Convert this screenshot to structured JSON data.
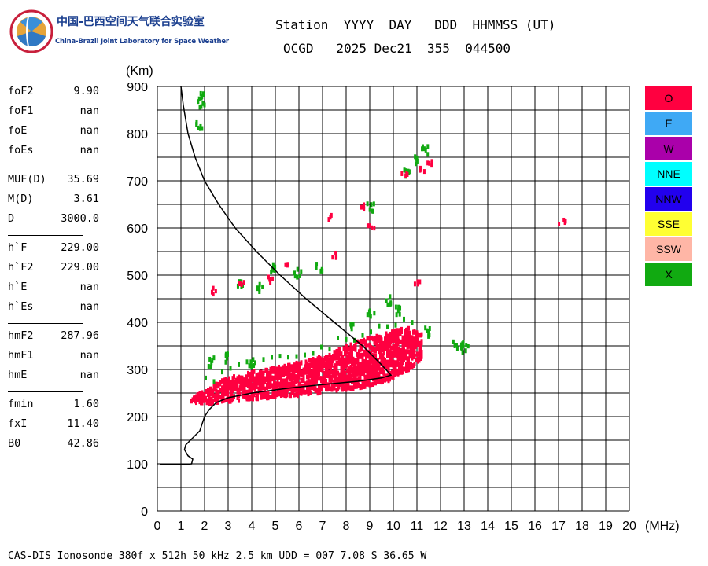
{
  "logo": {
    "title_cn": "中国-巴西空间天气联合实验室",
    "title_en": "China-Brazil Joint Laboratory for Space Weather"
  },
  "header": {
    "line1": "Station  YYYY  DAY   DDD  HHMMSS (UT)",
    "line2": "OCGD   2025 Dec21  355  044500"
  },
  "parameters": [
    {
      "name": "foF2",
      "value": "9.90"
    },
    {
      "name": "foF1",
      "value": "nan"
    },
    {
      "name": "foE",
      "value": "nan"
    },
    {
      "name": "foEs",
      "value": "nan"
    },
    {
      "sep": true
    },
    {
      "name": "MUF(D)",
      "value": "35.69"
    },
    {
      "name": "M(D)",
      "value": "3.61"
    },
    {
      "name": "D",
      "value": "3000.0"
    },
    {
      "sep": true
    },
    {
      "name": "h`F",
      "value": "229.00"
    },
    {
      "name": "h`F2",
      "value": "229.00"
    },
    {
      "name": "h`E",
      "value": "nan"
    },
    {
      "name": "h`Es",
      "value": "nan"
    },
    {
      "sep": true
    },
    {
      "name": "hmF2",
      "value": "287.96"
    },
    {
      "name": "hmF1",
      "value": "nan"
    },
    {
      "name": "hmE",
      "value": "nan"
    },
    {
      "sep": true
    },
    {
      "name": "fmin",
      "value": "1.60"
    },
    {
      "name": "fxI",
      "value": "11.40"
    },
    {
      "name": "B0",
      "value": "42.86"
    }
  ],
  "legend": [
    {
      "label": "O",
      "color": "#ff0040"
    },
    {
      "label": "E",
      "color": "#3fa9f5"
    },
    {
      "label": "W",
      "color": "#aa00aa"
    },
    {
      "label": "NNE",
      "color": "#00ffff"
    },
    {
      "label": "NNW",
      "color": "#2200ee"
    },
    {
      "label": "SSE",
      "color": "#ffff33"
    },
    {
      "label": "SSW",
      "color": "#ffb6a6"
    },
    {
      "label": "X",
      "color": "#11aa11"
    }
  ],
  "footer": "CAS-DIS Ionosonde 380f x 512h 50 kHz 2.5 km UDD = 007 7.08 S 36.65 W",
  "chart_data": {
    "type": "scatter",
    "xlabel": "(MHz)",
    "ylabel": "(Km)",
    "xlim": [
      0,
      20
    ],
    "ylim": [
      0,
      900
    ],
    "xticks": [
      0,
      1,
      2,
      3,
      4,
      5,
      6,
      7,
      8,
      9,
      10,
      11,
      12,
      13,
      14,
      15,
      16,
      17,
      18,
      19,
      20
    ],
    "yticks": [
      0,
      100,
      200,
      300,
      400,
      500,
      600,
      700,
      800,
      900
    ],
    "grid": true,
    "colors": {
      "O": "#ff0040",
      "X": "#11aa11",
      "profile": "#000000"
    },
    "profile_curve": [
      [
        1.0,
        900
      ],
      [
        1.1,
        860
      ],
      [
        1.3,
        800
      ],
      [
        1.6,
        750
      ],
      [
        2.0,
        700
      ],
      [
        2.6,
        650
      ],
      [
        3.3,
        600
      ],
      [
        4.2,
        550
      ],
      [
        5.2,
        500
      ],
      [
        6.3,
        450
      ],
      [
        7.5,
        400
      ],
      [
        8.7,
        350
      ],
      [
        9.5,
        310
      ],
      [
        9.9,
        288
      ],
      [
        9.5,
        282
      ],
      [
        8.5,
        275
      ],
      [
        7.0,
        268
      ],
      [
        5.5,
        260
      ],
      [
        4.0,
        250
      ],
      [
        3.0,
        240
      ],
      [
        2.5,
        230
      ],
      [
        2.2,
        215
      ],
      [
        2.0,
        200
      ],
      [
        1.8,
        170
      ],
      [
        1.5,
        155
      ],
      [
        1.2,
        140
      ],
      [
        1.15,
        130
      ],
      [
        1.3,
        117
      ],
      [
        1.5,
        110
      ],
      [
        1.45,
        100
      ],
      [
        1.0,
        98
      ],
      [
        0.4,
        98
      ],
      [
        0.1,
        98
      ]
    ],
    "o_trace_band": [
      [
        1.4,
        235,
        245
      ],
      [
        2.0,
        232,
        262
      ],
      [
        3.0,
        236,
        290
      ],
      [
        4.0,
        242,
        300
      ],
      [
        5.0,
        246,
        310
      ],
      [
        6.0,
        250,
        320
      ],
      [
        7.0,
        256,
        335
      ],
      [
        8.0,
        262,
        355
      ],
      [
        9.0,
        270,
        375
      ],
      [
        9.8,
        282,
        385
      ],
      [
        10.5,
        300,
        395
      ],
      [
        11.2,
        330,
        380
      ]
    ],
    "o_clusters": [
      [
        2.4,
        470
      ],
      [
        3.5,
        485
      ],
      [
        4.8,
        495
      ],
      [
        5.4,
        530
      ],
      [
        7.2,
        630
      ],
      [
        7.5,
        545
      ],
      [
        8.6,
        650
      ],
      [
        9.0,
        605
      ],
      [
        11.0,
        490
      ],
      [
        11.2,
        730
      ],
      [
        11.5,
        740
      ],
      [
        17.1,
        620
      ],
      [
        10.4,
        720
      ]
    ],
    "x_clusters": [
      [
        1.8,
        870
      ],
      [
        1.75,
        820
      ],
      [
        1.9,
        890
      ],
      [
        3.5,
        490
      ],
      [
        4.3,
        480
      ],
      [
        4.8,
        520
      ],
      [
        5.9,
        510
      ],
      [
        6.8,
        520
      ],
      [
        9.0,
        650
      ],
      [
        10.5,
        720
      ],
      [
        10.9,
        750
      ],
      [
        11.3,
        770
      ],
      [
        12.5,
        355
      ],
      [
        13.0,
        350
      ],
      [
        12.8,
        355
      ],
      [
        9.7,
        450
      ],
      [
        10.2,
        430
      ],
      [
        11.4,
        385
      ],
      [
        2.2,
        320
      ],
      [
        2.9,
        330
      ],
      [
        3.9,
        320
      ],
      [
        8.2,
        400
      ],
      [
        9.0,
        420
      ]
    ]
  }
}
